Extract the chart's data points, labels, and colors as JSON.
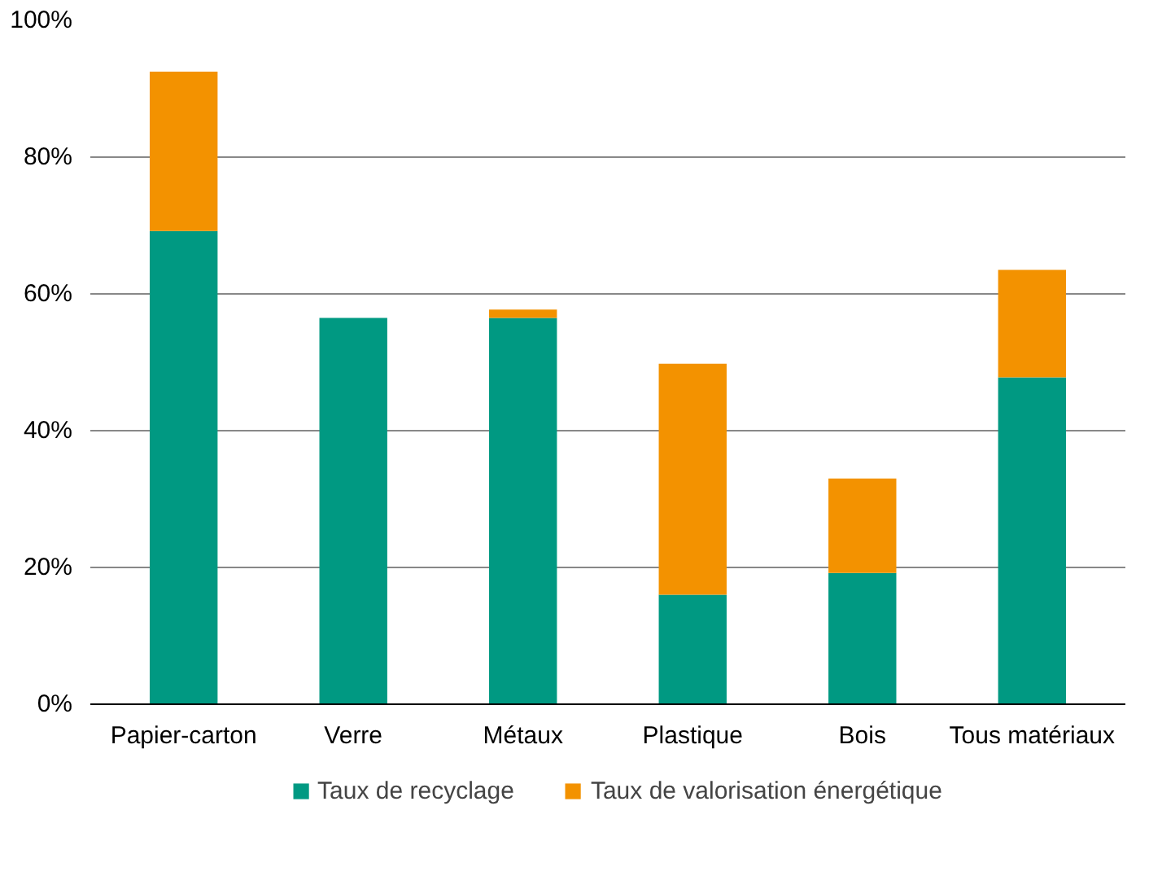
{
  "chart_data": {
    "type": "bar",
    "stacked": true,
    "categories": [
      "Papier-carton",
      "Verre",
      "Métaux",
      "Plastique",
      "Bois",
      "Tous matériaux"
    ],
    "series": [
      {
        "name": "Taux de recyclage",
        "color": "#009982",
        "values": [
          69.2,
          56.5,
          56.5,
          16,
          19.2,
          47.8
        ]
      },
      {
        "name": "Taux de valorisation énergétique",
        "color": "#f39200",
        "values": [
          23.3,
          null,
          1.2,
          33.8,
          13.8,
          15.7
        ]
      }
    ],
    "ylim": [
      0,
      100
    ],
    "yticks": [
      {
        "value": 0,
        "label": "0%"
      },
      {
        "value": 20,
        "label": "20%"
      },
      {
        "value": 40,
        "label": "40%"
      },
      {
        "value": 60,
        "label": "60%"
      },
      {
        "value": 80,
        "label": "80%"
      },
      {
        "value": 100,
        "label": "100%"
      }
    ],
    "grid": "y",
    "legend": "bottom"
  }
}
